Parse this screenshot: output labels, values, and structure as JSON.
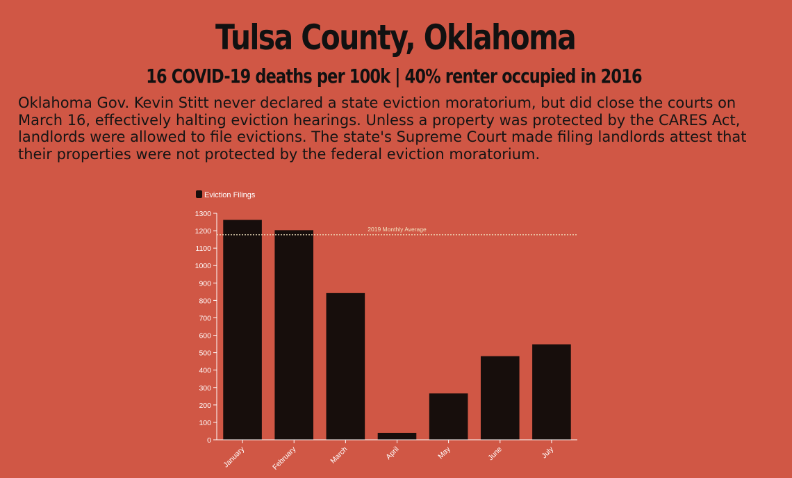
{
  "header": {
    "title": "Tulsa County, Oklahoma",
    "subtitle": "16 COVID-19 deaths per 100k | 40% renter occupied in 2016",
    "description": "Oklahoma Gov. Kevin Stitt never declared a state eviction moratorium, but did close the courts on March 16, effectively halting eviction hearings. Unless a property was protected by the CARES Act, landlords were allowed to file evictions. The state's Supreme Court made filing landlords attest that their properties were not protected by the federal eviction moratorium."
  },
  "chart_data": {
    "type": "bar",
    "categories": [
      "January",
      "February",
      "March",
      "April",
      "May",
      "June",
      "July"
    ],
    "series": [
      {
        "name": "Eviction Filings",
        "values": [
          1262,
          1203,
          842,
          40,
          266,
          480,
          548
        ]
      }
    ],
    "ylim": [
      0,
      1300
    ],
    "yticks": [
      0,
      100,
      200,
      300,
      400,
      500,
      600,
      700,
      800,
      900,
      1000,
      1100,
      1200,
      1300
    ],
    "reference_line": {
      "label": "2019 Monthly Average",
      "value": 1177
    },
    "legend": "top-left",
    "grid": false,
    "colors": {
      "bar": "#170e0c",
      "axis": "#ffffff",
      "reference": "#f2e3c0",
      "background": "#d05745"
    }
  }
}
